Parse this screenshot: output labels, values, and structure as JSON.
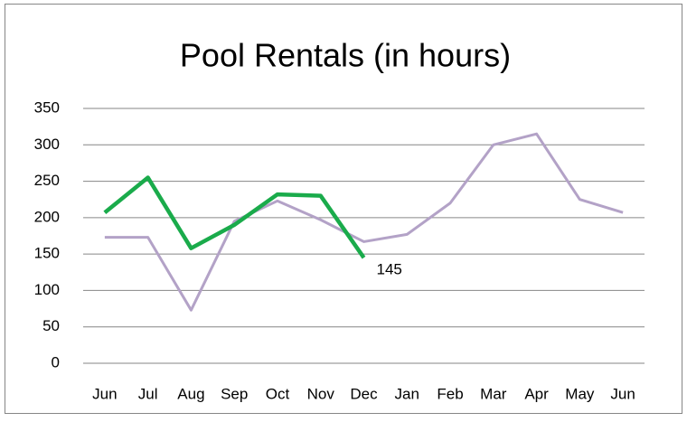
{
  "chart_data": {
    "type": "line",
    "title": "Pool Rentals (in hours)",
    "categories": [
      "Jun",
      "Jul",
      "Aug",
      "Sep",
      "Oct",
      "Nov",
      "Dec",
      "Jan",
      "Feb",
      "Mar",
      "Apr",
      "May",
      "Jun"
    ],
    "series": [
      {
        "color": "#b3a2c7",
        "values": [
          173,
          173,
          73,
          195,
          223,
          197,
          167,
          177,
          220,
          300,
          315,
          225,
          207
        ]
      },
      {
        "color": "#1aab4b",
        "values": [
          207,
          255,
          158,
          190,
          232,
          230,
          145,
          null,
          null,
          null,
          null,
          null,
          null
        ],
        "labeled_points": [
          6
        ]
      }
    ],
    "ylim": [
      0,
      350
    ],
    "yticks": [
      0,
      50,
      100,
      150,
      200,
      250,
      300,
      350
    ],
    "grid": true
  }
}
